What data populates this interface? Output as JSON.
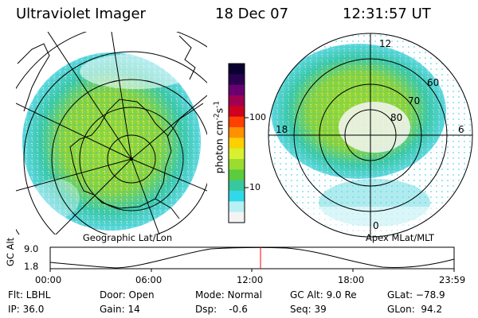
{
  "header": {
    "instrument": "Ultraviolet Imager",
    "date": "18 Dec 07",
    "time": "12:31:57 UT"
  },
  "geo_panel": {
    "caption": "Geographic Lat/Lon"
  },
  "mlt_panel": {
    "caption": "Apex MLat/MLT",
    "mlt_labels": {
      "top": "12",
      "left": "18",
      "right": "6",
      "bottom": "0"
    },
    "lat_labels": [
      "60",
      "70",
      "80"
    ]
  },
  "colorbar": {
    "unit_main": "photon cm",
    "unit_exp1": "-2",
    "unit_mid": "s",
    "unit_exp2": "-1",
    "ticks": [
      "100",
      "10"
    ],
    "colors": [
      "#0a0030",
      "#2a0050",
      "#6a0070",
      "#a00050",
      "#d00020",
      "#ff4000",
      "#ff9000",
      "#ffd000",
      "#d8f030",
      "#9adc30",
      "#5ccc3c",
      "#38c8a0",
      "#30d8e8",
      "#b8f0f4",
      "#f4f4f4"
    ]
  },
  "timeline": {
    "ylabel": "GC Alt",
    "y_ticks": [
      "9.0",
      "1.8"
    ],
    "x_ticks": [
      "00:00",
      "06:00",
      "12:00",
      "18:00",
      "23:59"
    ],
    "marker_color": "#ff0000"
  },
  "info": {
    "filter": "Flt: LBHL",
    "ip": "IP: 36.0",
    "door": "Door: Open",
    "gain": "Gain: 14",
    "mode": "Mode: Normal",
    "dsp": "Dsp:    -0.6",
    "gc_alt": "GC Alt: 9.0 Re",
    "seq": "Seq: 39",
    "glat": "GLat: −78.9",
    "glon": "GLon:  94.2"
  }
}
